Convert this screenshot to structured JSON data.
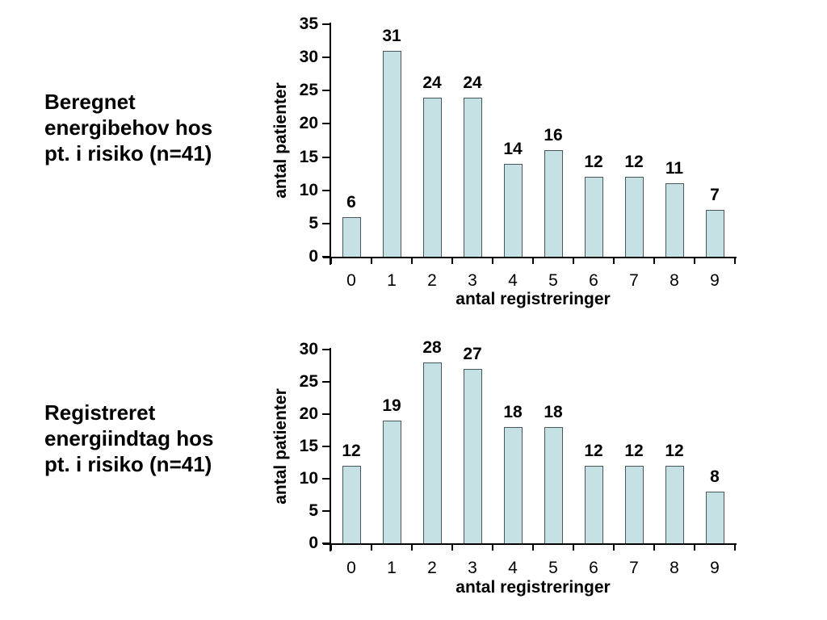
{
  "slide": {
    "background": "#ffffff",
    "text_color": "#000000"
  },
  "colors": {
    "bar_fill": "#c6e1e4",
    "bar_border": "#47565e",
    "axis": "#000000",
    "label_text": "#000000"
  },
  "chart_data": [
    {
      "type": "bar",
      "side_title_lines": [
        "Beregnet",
        "energibehov hos",
        "pt. i risiko (n=41)"
      ],
      "ylabel": "antal patienter",
      "xlabel": "antal registreringer",
      "categories": [
        "0",
        "1",
        "2",
        "3",
        "4",
        "5",
        "6",
        "7",
        "8",
        "9"
      ],
      "values": [
        6,
        31,
        24,
        24,
        14,
        16,
        12,
        12,
        11,
        7
      ],
      "ylim": [
        0,
        35
      ],
      "ytick_step": 5,
      "ytick_labels": [
        "0",
        "5",
        "10",
        "15",
        "20",
        "25",
        "30",
        "35"
      ],
      "grid": false,
      "legend": "none",
      "data_labels": "above-bars"
    },
    {
      "type": "bar",
      "side_title_lines": [
        "Registreret",
        "energiindtag hos",
        "pt. i risiko (n=41)"
      ],
      "ylabel": "antal patienter",
      "xlabel": "antal registreringer",
      "categories": [
        "0",
        "1",
        "2",
        "3",
        "4",
        "5",
        "6",
        "7",
        "8",
        "9"
      ],
      "values": [
        12,
        19,
        28,
        27,
        18,
        18,
        12,
        12,
        12,
        8
      ],
      "ylim": [
        0,
        30
      ],
      "ytick_step": 5,
      "ytick_labels": [
        "0",
        "5",
        "10",
        "15",
        "20",
        "25",
        "30"
      ],
      "grid": false,
      "legend": "none",
      "data_labels": "above-bars"
    }
  ]
}
